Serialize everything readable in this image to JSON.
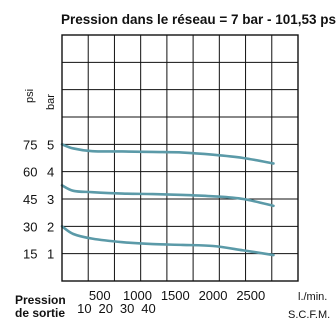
{
  "chart_data": {
    "type": "line",
    "title": "Pression dans le réseau = 7 bar - 101,53 psi",
    "xlabel": "Pression de sortie",
    "x_units": [
      "l./min.",
      "S.C.F.M."
    ],
    "y_units": [
      "psi",
      "bar"
    ],
    "x_ticks_lpm": [
      "500",
      "1000",
      "1500",
      "2000",
      "2500"
    ],
    "x_ticks_scfm": [
      "10",
      "20",
      "30",
      "40"
    ],
    "y_ticks_psi": [
      "15",
      "30",
      "45",
      "60",
      "75"
    ],
    "y_ticks_bar": [
      "1",
      "2",
      "3",
      "4",
      "5"
    ],
    "xlim": [
      0,
      3125
    ],
    "ylim_bar": [
      0,
      9
    ],
    "line_color": "#5b9aa8",
    "grid": true,
    "series": [
      {
        "x": [
          0,
          150,
          400,
          800,
          1200,
          1600,
          2000,
          2400,
          2800
        ],
        "y": [
          5.0,
          4.85,
          4.75,
          4.74,
          4.72,
          4.7,
          4.62,
          4.5,
          4.3
        ]
      },
      {
        "x": [
          0,
          150,
          400,
          800,
          1200,
          1600,
          2000,
          2400,
          2800
        ],
        "y": [
          3.5,
          3.3,
          3.25,
          3.2,
          3.18,
          3.15,
          3.1,
          3.0,
          2.75
        ]
      },
      {
        "x": [
          0,
          150,
          400,
          800,
          1200,
          1600,
          2000,
          2400,
          2800
        ],
        "y": [
          2.0,
          1.72,
          1.55,
          1.42,
          1.35,
          1.32,
          1.28,
          1.12,
          0.95
        ]
      }
    ]
  }
}
